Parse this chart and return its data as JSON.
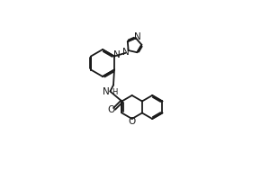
{
  "background_color": "#ffffff",
  "line_color": "#1a1a1a",
  "line_width": 1.3,
  "fig_width": 3.0,
  "fig_height": 2.0,
  "dpi": 100,
  "xlim": [
    0,
    10
  ],
  "ylim": [
    0,
    10
  ]
}
